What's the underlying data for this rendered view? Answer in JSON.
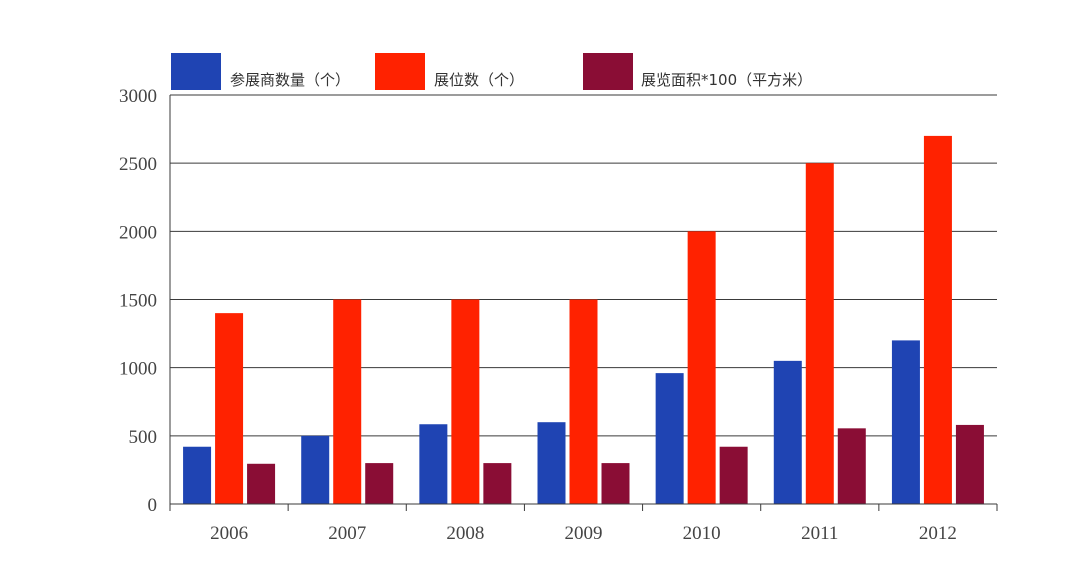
{
  "chart_data": {
    "type": "bar",
    "categories": [
      "2006",
      "2007",
      "2008",
      "2009",
      "2010",
      "2011",
      "2012"
    ],
    "series": [
      {
        "name": "参展商数量（个）",
        "color": "#1f44b3",
        "values": [
          420,
          500,
          585,
          600,
          960,
          1050,
          1200
        ]
      },
      {
        "name": "展位数（个）",
        "color": "#ff2200",
        "values": [
          1400,
          1500,
          1500,
          1500,
          2000,
          2500,
          2700
        ]
      },
      {
        "name": "展览面积*100（平方米）",
        "color": "#8a0d35",
        "values": [
          295,
          300,
          300,
          300,
          420,
          555,
          580
        ]
      }
    ],
    "ylim": [
      0,
      3000
    ],
    "yticks": [
      "0",
      "500",
      "1000",
      "1500",
      "2000",
      "2500",
      "3000"
    ],
    "grid": true,
    "legend_position": "top"
  }
}
